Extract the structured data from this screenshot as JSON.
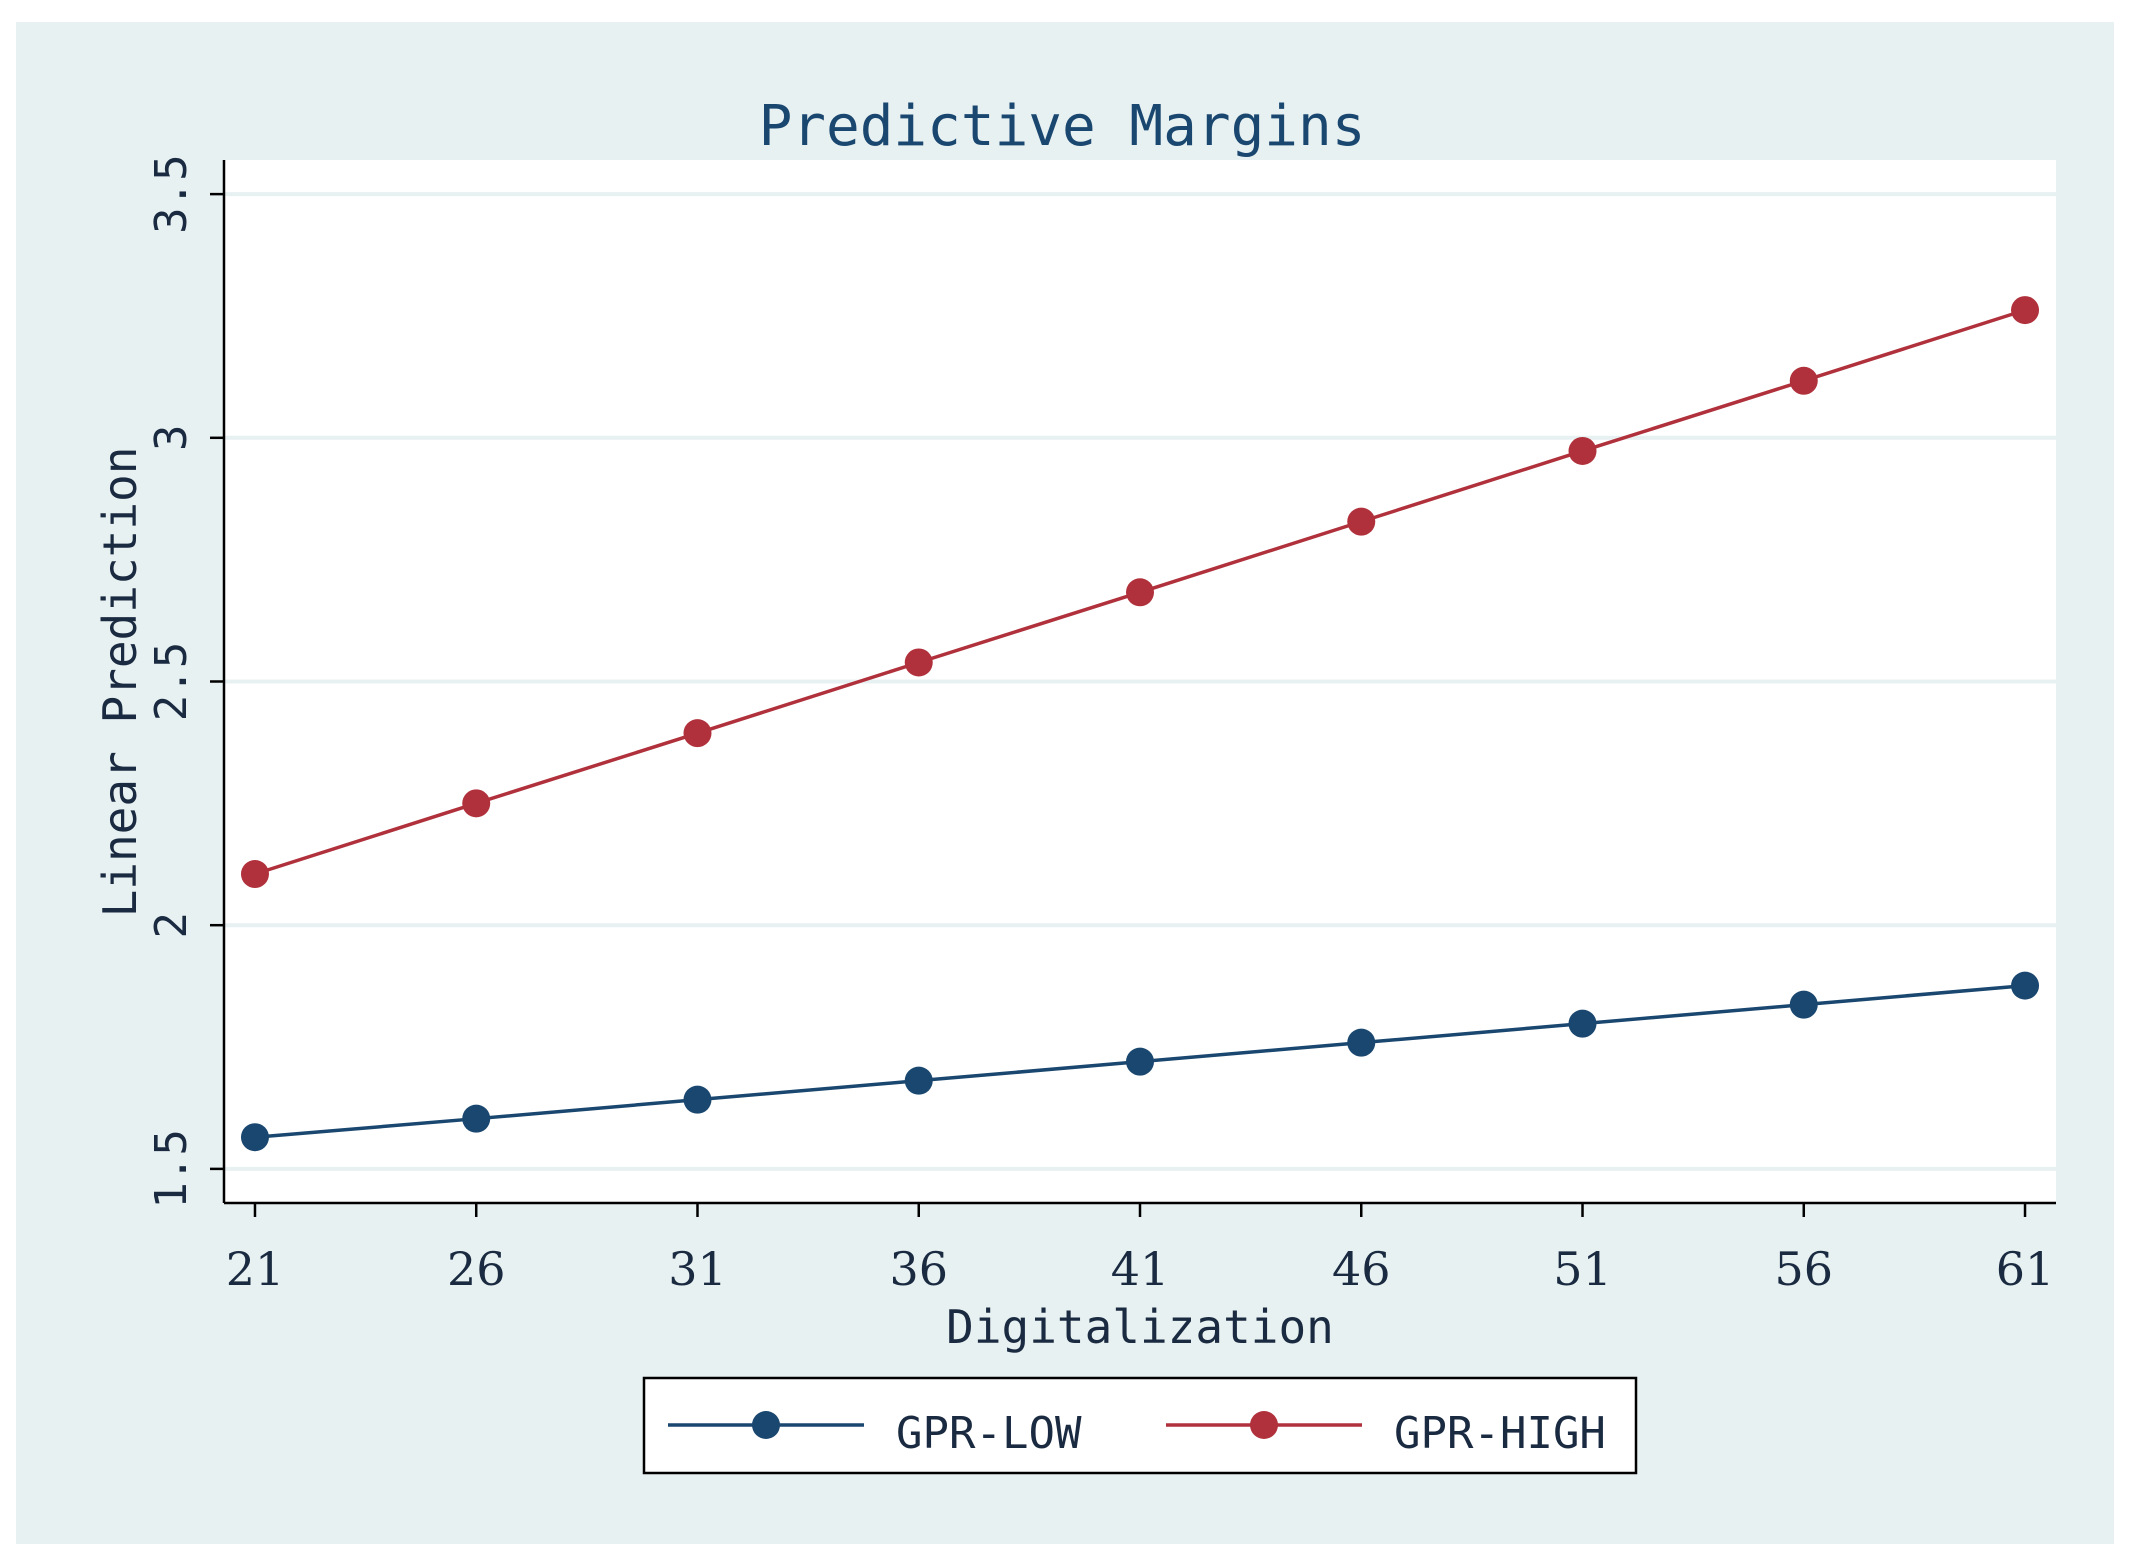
{
  "chart_data": {
    "type": "line",
    "title": "Predictive Margins",
    "xlabel": "Digitalization",
    "ylabel": "Linear Prediction",
    "x": [
      21,
      26,
      31,
      36,
      41,
      46,
      51,
      56,
      61
    ],
    "x_tick_labels": [
      "21",
      "26",
      "31",
      "36",
      "41",
      "46",
      "51",
      "56",
      "61"
    ],
    "y_ticks": [
      1.5,
      2,
      2.5,
      3,
      3.5
    ],
    "y_tick_labels": [
      "1.5",
      "2",
      "2.5",
      "3",
      "3.5"
    ],
    "xlim": [
      20.3,
      61.7
    ],
    "ylim": [
      1.43,
      3.57
    ],
    "grid": true,
    "legend_position": "bottom",
    "series": [
      {
        "name": "GPR-LOW",
        "color": "#1a476f",
        "values": [
          1.565,
          1.603,
          1.642,
          1.681,
          1.72,
          1.759,
          1.798,
          1.837,
          1.876
        ]
      },
      {
        "name": "GPR-HIGH",
        "color": "#b0313b",
        "values": [
          2.105,
          2.25,
          2.394,
          2.539,
          2.683,
          2.828,
          2.973,
          3.117,
          3.262
        ]
      }
    ]
  },
  "colors": {
    "outer_background": "#e8f1f2",
    "plot_background": "#ffffff",
    "grid": "#e8f1f2",
    "text": "#1a2a40",
    "title": "#1a476f"
  }
}
